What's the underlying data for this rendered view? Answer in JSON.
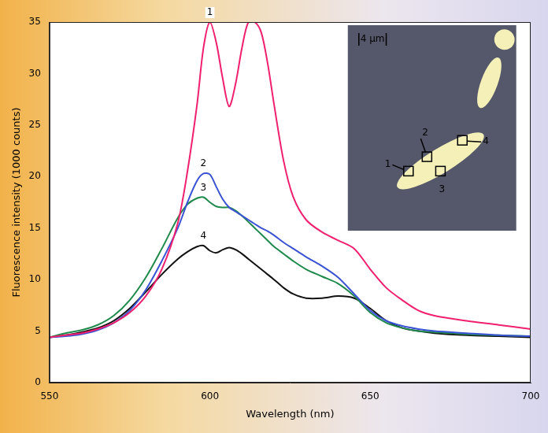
{
  "chart_data": {
    "type": "line",
    "x_label": "Wavelength (nm)",
    "y_label": "Fluorescence intensity (1000 counts)",
    "x": [
      550,
      555,
      560,
      565,
      570,
      575,
      580,
      585,
      590,
      593,
      596,
      598,
      600,
      602,
      604,
      606,
      608,
      610,
      612,
      614,
      616,
      618,
      620,
      623,
      626,
      630,
      635,
      640,
      645,
      650,
      655,
      660,
      665,
      670,
      680,
      690,
      700
    ],
    "xlim": [
      550,
      700
    ],
    "xticks": [
      550,
      600,
      650,
      700
    ],
    "ylim": [
      0,
      35
    ],
    "yticks": [
      0,
      5,
      10,
      15,
      20,
      25,
      30,
      35
    ],
    "grid": false,
    "series": [
      {
        "name": "1",
        "color": "#f0206e",
        "values": [
          4.4,
          4.6,
          4.8,
          5.2,
          5.8,
          6.8,
          8.4,
          11,
          15.5,
          20.5,
          27,
          32.5,
          35,
          33,
          29.5,
          26.8,
          29,
          32.5,
          35,
          35,
          34,
          31,
          27,
          21.5,
          18,
          15.8,
          14.6,
          13.8,
          13,
          11,
          9.2,
          8,
          7,
          6.5,
          6,
          5.6,
          5.2
        ]
      },
      {
        "name": "2",
        "color": "#3a52d4",
        "values": [
          4.4,
          4.5,
          4.7,
          5.1,
          5.8,
          7,
          9,
          11.8,
          15,
          17.5,
          19.6,
          20.3,
          20.2,
          19,
          17.8,
          17,
          16.6,
          16.2,
          15.8,
          15.4,
          15,
          14.7,
          14.3,
          13.6,
          13,
          12.2,
          11.3,
          10.2,
          8.6,
          7,
          6,
          5.5,
          5.2,
          5,
          4.8,
          4.6,
          4.5
        ]
      },
      {
        "name": "3",
        "color": "#1f8a4c",
        "values": [
          4.4,
          4.8,
          5.1,
          5.6,
          6.5,
          8,
          10.2,
          13,
          16,
          17.3,
          17.9,
          18,
          17.5,
          17.1,
          17,
          17,
          16.7,
          16.2,
          15.6,
          15,
          14.4,
          13.8,
          13.2,
          12.5,
          11.8,
          11,
          10.3,
          9.6,
          8.4,
          6.8,
          5.8,
          5.3,
          5,
          4.9,
          4.7,
          4.6,
          4.5
        ]
      },
      {
        "name": "4",
        "color": "#111111",
        "values": [
          4.4,
          4.6,
          4.9,
          5.3,
          6,
          7.2,
          8.8,
          10.5,
          12,
          12.7,
          13.2,
          13.3,
          12.8,
          12.6,
          12.9,
          13.1,
          12.9,
          12.5,
          12,
          11.5,
          11,
          10.5,
          10,
          9.2,
          8.6,
          8.2,
          8.2,
          8.4,
          8.2,
          7.2,
          6,
          5.3,
          5,
          4.8,
          4.6,
          4.5,
          4.4
        ]
      }
    ],
    "inset": {
      "scale_bar": "4 µm",
      "regions": [
        "1",
        "2",
        "3",
        "4"
      ]
    }
  }
}
